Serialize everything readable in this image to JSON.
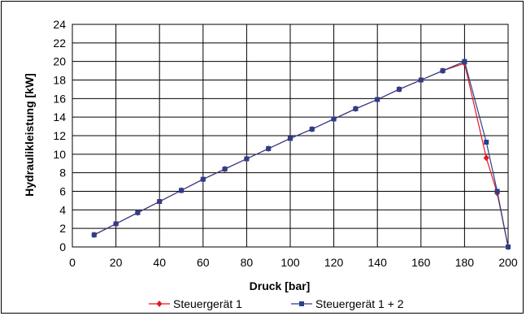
{
  "chart_data": {
    "type": "line",
    "xlabel": "Druck [bar]",
    "ylabel": "Hydraulikleistung [kW]",
    "xlim": [
      0,
      200
    ],
    "ylim": [
      0,
      24
    ],
    "xticks": [
      0,
      20,
      40,
      60,
      80,
      100,
      120,
      140,
      160,
      180,
      200
    ],
    "yticks": [
      0,
      2,
      4,
      6,
      8,
      10,
      12,
      14,
      16,
      18,
      20,
      22,
      24
    ],
    "grid": true,
    "legend_position": "bottom",
    "series": [
      {
        "name": "Steuergerät 1",
        "color": "#e8141c",
        "marker": "diamond",
        "x": [
          10,
          20,
          30,
          40,
          50,
          60,
          70,
          80,
          90,
          100,
          110,
          120,
          130,
          140,
          150,
          160,
          170,
          180,
          190,
          195,
          200
        ],
        "y": [
          1.3,
          2.5,
          3.7,
          4.9,
          6.1,
          7.3,
          8.4,
          9.5,
          10.6,
          11.7,
          12.7,
          13.8,
          14.9,
          15.9,
          17.0,
          18.0,
          19.0,
          19.8,
          9.6,
          5.8,
          0.0
        ]
      },
      {
        "name": "Steuergerät 1 + 2",
        "color": "#2b3f8a",
        "marker": "square",
        "x": [
          10,
          20,
          30,
          40,
          50,
          60,
          70,
          80,
          90,
          100,
          110,
          120,
          130,
          140,
          150,
          160,
          170,
          180,
          190,
          195,
          200
        ],
        "y": [
          1.3,
          2.5,
          3.7,
          4.9,
          6.1,
          7.3,
          8.4,
          9.5,
          10.6,
          11.7,
          12.7,
          13.8,
          14.9,
          15.9,
          17.0,
          18.0,
          19.0,
          20.0,
          11.3,
          6.0,
          0.0
        ]
      }
    ]
  }
}
